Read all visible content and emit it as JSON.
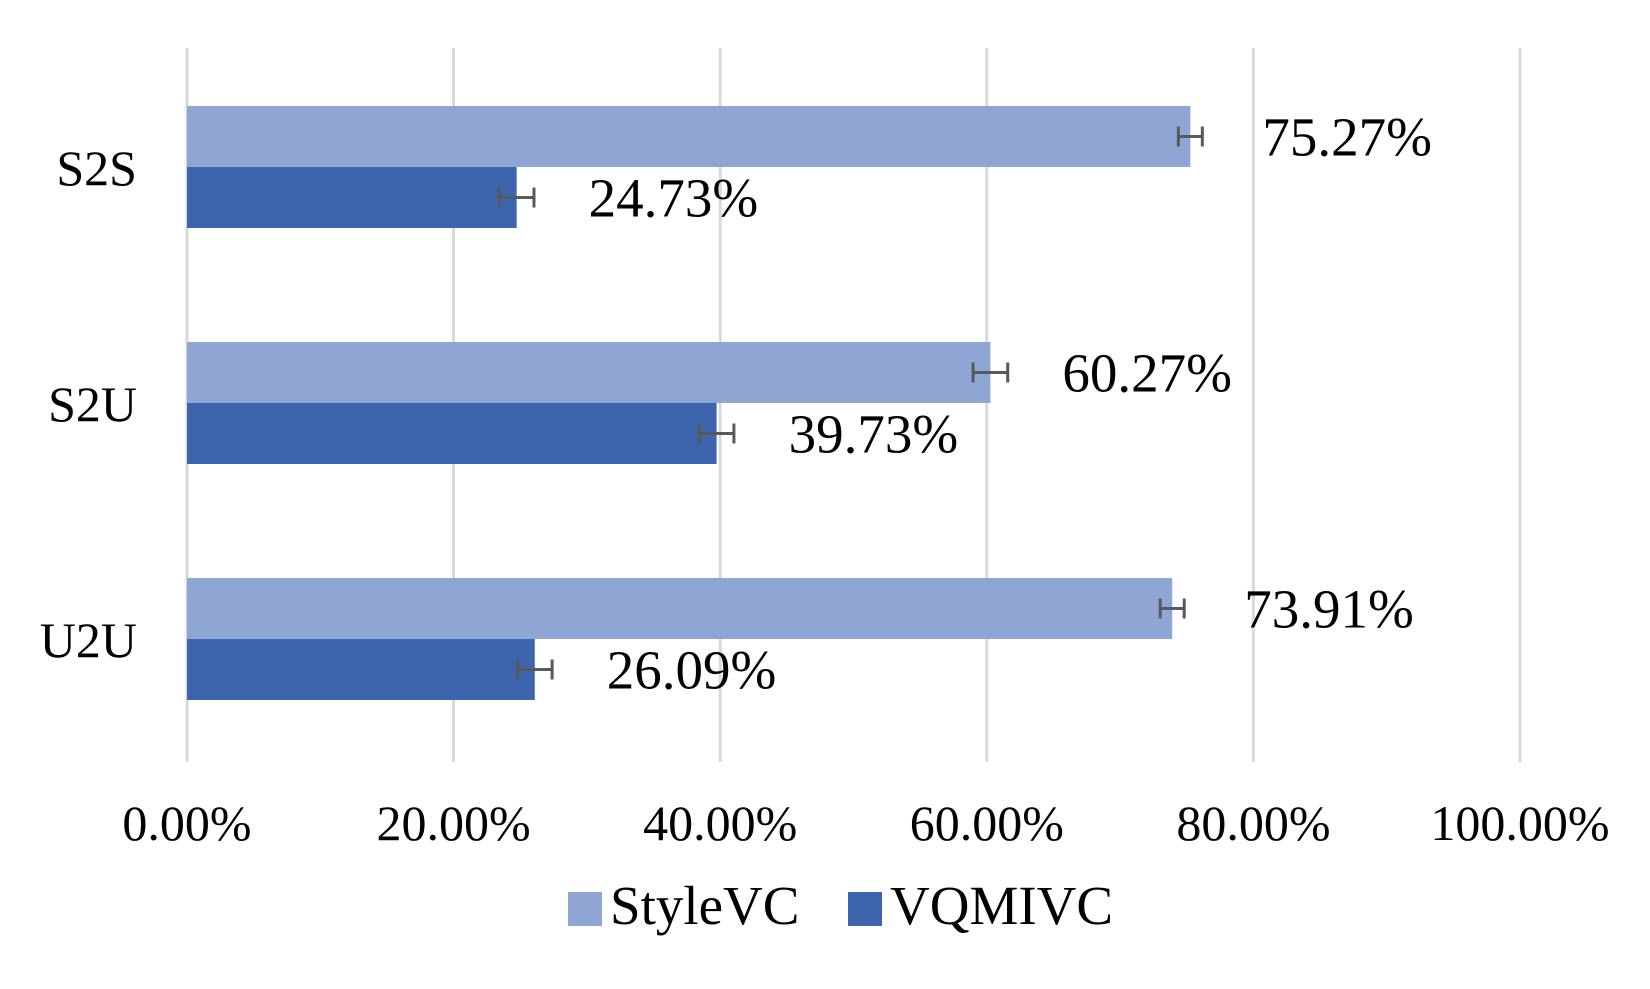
{
  "chart_data": {
    "type": "bar",
    "orientation": "horizontal",
    "categories": [
      "S2S",
      "S2U",
      "U2U"
    ],
    "series": [
      {
        "name": "StyleVC",
        "color": "#8fa5d4",
        "values": [
          75.27,
          60.27,
          73.91
        ],
        "labels": [
          "75.27%",
          "60.27%",
          "73.91%"
        ],
        "error": [
          0.9,
          1.3,
          0.9
        ]
      },
      {
        "name": "VQMIVC",
        "color": "#3d65ae",
        "values": [
          24.73,
          39.73,
          26.09
        ],
        "labels": [
          "24.73%",
          "39.73%",
          "26.09%"
        ],
        "error": [
          1.3,
          1.3,
          1.3
        ]
      }
    ],
    "xlim": [
      0,
      100
    ],
    "x_ticks": [
      0,
      20,
      40,
      60,
      80,
      100
    ],
    "x_tick_labels": [
      "0.00%",
      "20.00%",
      "40.00%",
      "60.00%",
      "80.00%",
      "100.00%"
    ],
    "title": "",
    "xlabel": "",
    "ylabel": "",
    "grid": "vertical",
    "legend": "bottom"
  }
}
